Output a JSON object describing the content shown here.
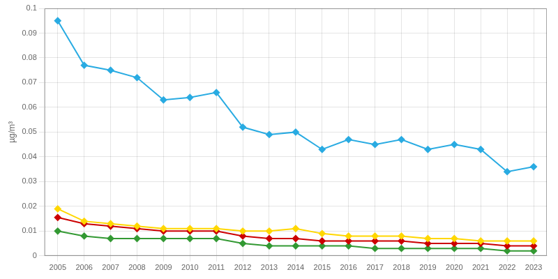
{
  "chart_data": {
    "type": "line",
    "x": [
      2005,
      2006,
      2007,
      2008,
      2009,
      2010,
      2011,
      2012,
      2013,
      2014,
      2015,
      2016,
      2017,
      2018,
      2019,
      2020,
      2021,
      2022,
      2023
    ],
    "series": [
      {
        "color": "#29ABE2",
        "values": [
          0.095,
          0.077,
          0.075,
          0.072,
          0.063,
          0.064,
          0.066,
          0.052,
          0.049,
          0.05,
          0.043,
          0.047,
          0.045,
          0.047,
          0.043,
          0.045,
          0.043,
          0.034,
          0.036
        ]
      },
      {
        "color": "#FFD700",
        "values": [
          0.019,
          0.014,
          0.013,
          0.012,
          0.011,
          0.011,
          0.011,
          0.01,
          0.01,
          0.011,
          0.009,
          0.008,
          0.008,
          0.008,
          0.007,
          0.007,
          0.006,
          0.006,
          0.006
        ]
      },
      {
        "color": "#CC0000",
        "values": [
          0.0155,
          0.013,
          0.012,
          0.011,
          0.01,
          0.01,
          0.01,
          0.008,
          0.007,
          0.007,
          0.006,
          0.006,
          0.006,
          0.006,
          0.005,
          0.005,
          0.005,
          0.004,
          0.004
        ]
      },
      {
        "color": "#339933",
        "values": [
          0.01,
          0.008,
          0.007,
          0.007,
          0.007,
          0.007,
          0.007,
          0.005,
          0.004,
          0.004,
          0.004,
          0.004,
          0.003,
          0.003,
          0.003,
          0.003,
          0.003,
          0.002,
          0.002
        ]
      }
    ],
    "ylabel": "µg/m³",
    "xlim": [
      2004.5,
      2023.5
    ],
    "xticks": [
      2005,
      2006,
      2007,
      2008,
      2009,
      2010,
      2011,
      2012,
      2013,
      2014,
      2015,
      2016,
      2017,
      2018,
      2019,
      2020,
      2021,
      2022,
      2023
    ],
    "ylim": [
      0,
      0.1
    ],
    "yticks": [
      0,
      0.01,
      0.02,
      0.03,
      0.04,
      0.05,
      0.06,
      0.07,
      0.08,
      0.09,
      0.1
    ],
    "grid": true,
    "marker": "diamond",
    "line_style": "solid"
  }
}
